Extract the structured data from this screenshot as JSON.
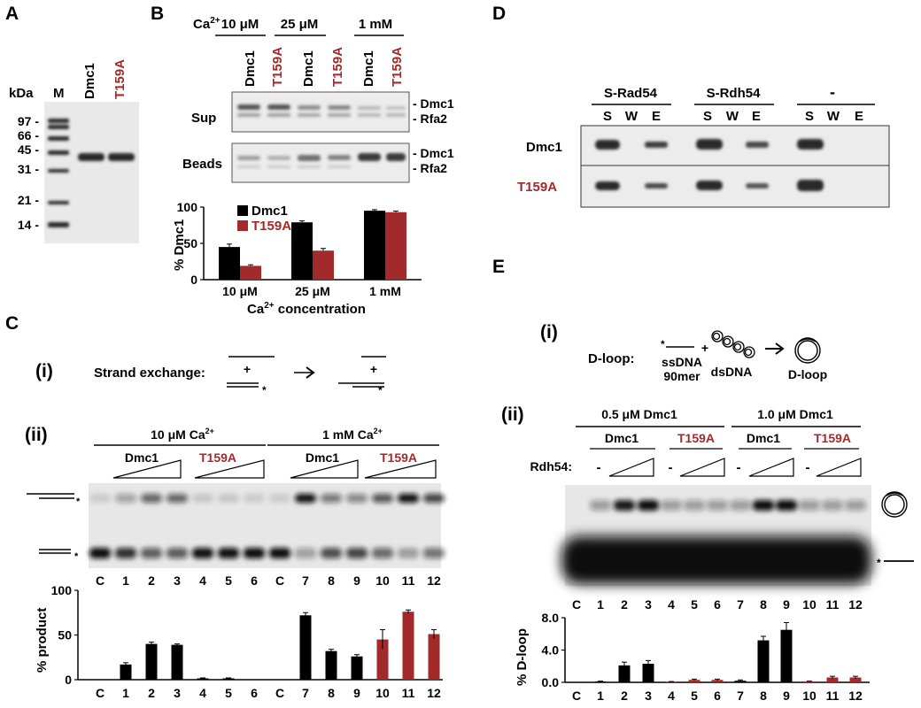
{
  "panel_letters": {
    "A": "A",
    "B": "B",
    "C": "C",
    "D": "D",
    "E": "E"
  },
  "colors": {
    "dmc1": "#000000",
    "t159a": "#a32a2a",
    "gel_bg": "#e7e7e7",
    "band": "#2a2a2a"
  },
  "panel_a": {
    "kda_label": "kDa",
    "marker_label": "M",
    "lane_labels": [
      "Dmc1",
      "T159A"
    ],
    "mw_ticks": [
      "97 -",
      "66 -",
      "45 -",
      "31 -",
      "21 -",
      "14 -"
    ]
  },
  "panel_b": {
    "ca_label": "Ca",
    "ca_sup": "2+",
    "conc_groups": [
      "10 μM",
      "25 μM",
      "1 mM"
    ],
    "lane_pair": [
      "Dmc1",
      "T159A"
    ],
    "sup_label": "Sup",
    "beads_label": "Beads",
    "band_labels": [
      "- Dmc1",
      "- Rfa2"
    ],
    "legend": [
      "Dmc1",
      "T159A"
    ]
  },
  "chart_b": {
    "type": "bar",
    "categories": [
      "10 μM",
      "25 μM",
      "1 mM"
    ],
    "series": [
      {
        "name": "Dmc1",
        "values": [
          45,
          79,
          95
        ],
        "errors": [
          4,
          2,
          1.5
        ]
      },
      {
        "name": "T159A",
        "values": [
          19,
          40,
          93
        ],
        "errors": [
          1.5,
          3,
          1.5
        ]
      }
    ],
    "ylabel": "% Dmc1",
    "xlabel": "Ca",
    "xlabel_sup": "2+",
    "xlabel_end": " concentration",
    "ylim": [
      0,
      100
    ],
    "yticks": [
      "0",
      "50",
      "100"
    ]
  },
  "panel_c": {
    "i_label": "(i)",
    "ii_label": "(ii)",
    "scheme_label": "Strand exchange:",
    "plus": "+",
    "star": "*",
    "group_labels": [
      "10 μM Ca",
      "1 mM Ca"
    ],
    "group_sup": "2+",
    "protein_labels": [
      "Dmc1",
      "T159A",
      "Dmc1",
      "T159A"
    ],
    "lane_numbers": [
      "C",
      "1",
      "2",
      "3",
      "4",
      "5",
      "6",
      "C",
      "7",
      "8",
      "9",
      "10",
      "11",
      "12"
    ]
  },
  "chart_c": {
    "type": "bar",
    "categories": [
      "C",
      "1",
      "2",
      "3",
      "4",
      "5",
      "6",
      "C",
      "7",
      "8",
      "9",
      "10",
      "11",
      "12"
    ],
    "values": [
      0,
      17,
      40,
      39,
      1.5,
      1.5,
      0,
      0,
      72,
      32,
      26,
      45,
      76,
      51
    ],
    "errors": [
      0,
      2,
      2,
      1,
      0.5,
      0.5,
      0,
      0,
      3,
      2,
      2,
      11,
      2,
      5
    ],
    "bar_colors": [
      "#000000",
      "#000000",
      "#000000",
      "#000000",
      "#000000",
      "#000000",
      "#000000",
      "#000000",
      "#000000",
      "#000000",
      "#000000",
      "#a32a2a",
      "#a32a2a",
      "#a32a2a"
    ],
    "ylabel": "% product",
    "ylim": [
      0,
      100
    ],
    "yticks": [
      "0",
      "50",
      "100"
    ]
  },
  "panel_d": {
    "group_labels": [
      "S-Rad54",
      "S-Rdh54",
      "-"
    ],
    "lane_letters": [
      "S",
      "W",
      "E"
    ],
    "row_labels": [
      "Dmc1",
      "T159A"
    ]
  },
  "panel_e": {
    "i_label": "(i)",
    "ii_label": "(ii)",
    "scheme_label": "D-loop:",
    "ssdna_label": "ssDNA",
    "ssdna_len": "90mer",
    "dsdna_label": "dsDNA",
    "product_label": "D-loop",
    "plus": "+",
    "star": "*",
    "group_labels": [
      "0.5 μM Dmc1",
      "1.0 μM Dmc1"
    ],
    "protein_labels": [
      "Dmc1",
      "T159A",
      "Dmc1",
      "T159A"
    ],
    "rdh54_label": "Rdh54:",
    "minus": "-",
    "lane_numbers": [
      "C",
      "1",
      "2",
      "3",
      "4",
      "5",
      "6",
      "7",
      "8",
      "9",
      "10",
      "11",
      "12"
    ]
  },
  "chart_e": {
    "type": "bar",
    "categories": [
      "C",
      "1",
      "2",
      "3",
      "4",
      "5",
      "6",
      "7",
      "8",
      "9",
      "10",
      "11",
      "12"
    ],
    "values": [
      0,
      0.1,
      2.1,
      2.3,
      0.05,
      0.3,
      0.3,
      0.2,
      5.2,
      6.5,
      0.1,
      0.6,
      0.6
    ],
    "errors": [
      0,
      0.05,
      0.4,
      0.4,
      0.05,
      0.1,
      0.1,
      0.1,
      0.5,
      0.9,
      0.05,
      0.15,
      0.15
    ],
    "bar_colors": [
      "#000000",
      "#000000",
      "#000000",
      "#000000",
      "#a32a2a",
      "#a32a2a",
      "#a32a2a",
      "#000000",
      "#000000",
      "#000000",
      "#a32a2a",
      "#a32a2a",
      "#a32a2a"
    ],
    "ylabel": "% D-loop",
    "ylim": [
      0,
      8
    ],
    "yticks": [
      "0.0",
      "4.0",
      "8.0"
    ]
  }
}
